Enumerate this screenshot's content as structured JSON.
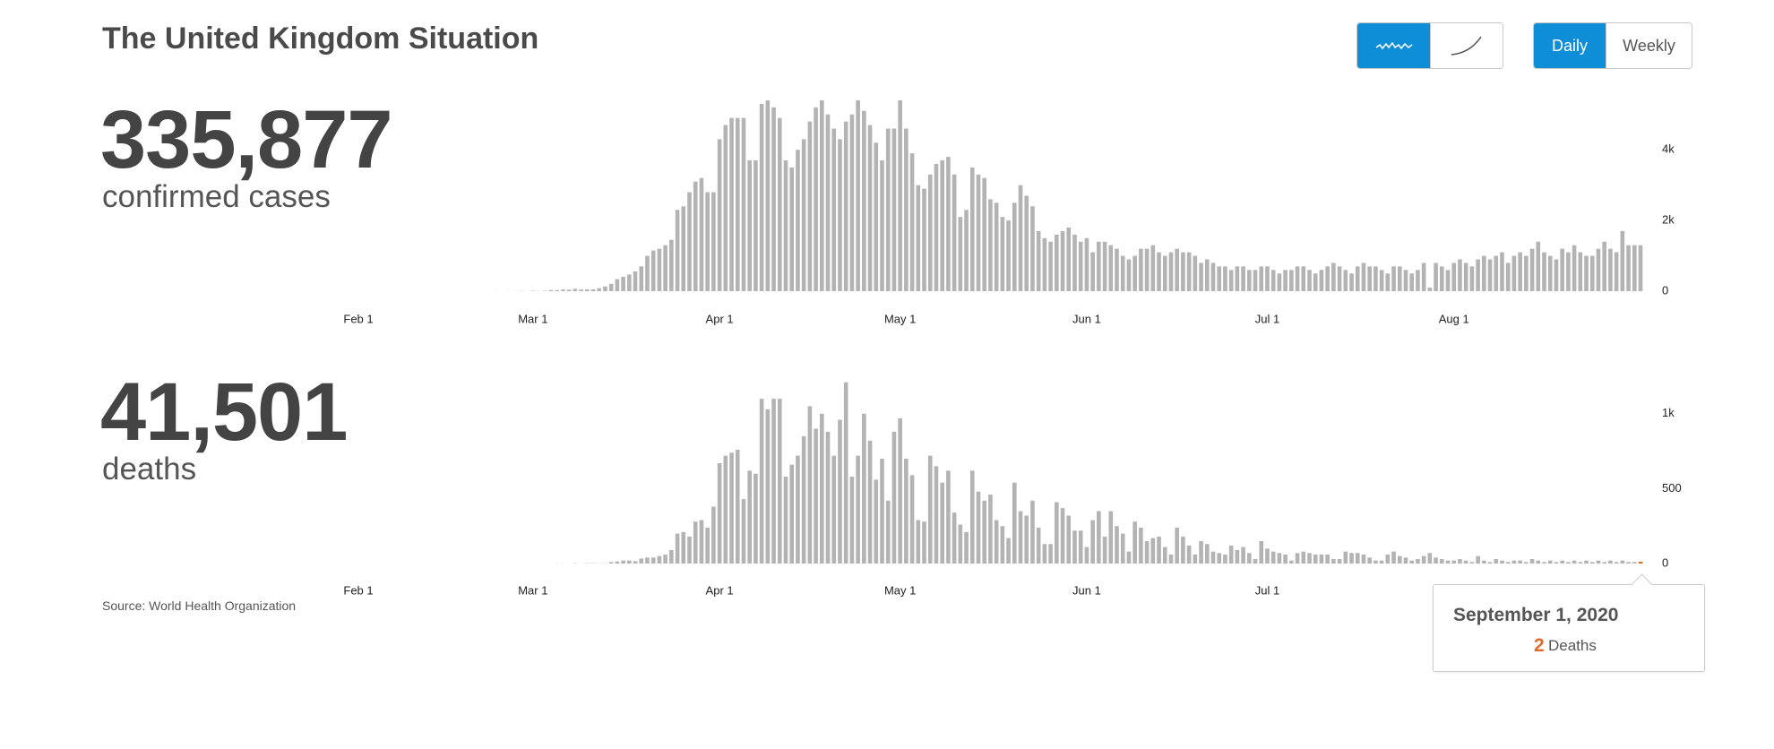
{
  "header": {
    "title": "The United Kingdom Situation"
  },
  "controls": {
    "time_ranges": [
      "Daily",
      "Weekly"
    ]
  },
  "stats": [
    {
      "value": "335,877",
      "label": "confirmed cases"
    },
    {
      "value": "41,501",
      "label": "deaths"
    }
  ],
  "source": {
    "label": "Source:",
    "name": "World Health Organization"
  },
  "tooltip": {
    "date": "September 1, 2020",
    "label": "Deaths",
    "color": "#e0692c"
  },
  "chart_data": [
    {
      "type": "bar",
      "color": "#b3b3b3",
      "ylim": [
        0,
        5500
      ],
      "yticks": [
        0,
        {
          "value": 2000,
          "label": "2k"
        },
        {
          "value": 4000,
          "label": "4k"
        }
      ],
      "grid": false,
      "categories": [
        "Feb 1",
        null,
        null,
        null,
        null,
        null,
        null,
        null,
        null,
        null,
        null,
        null,
        null,
        null,
        null,
        null,
        null,
        null,
        null,
        null,
        null,
        null,
        null,
        null,
        null,
        null,
        null,
        null,
        null,
        "Mar 1",
        null,
        null,
        null,
        null,
        null,
        null,
        null,
        null,
        null,
        null,
        null,
        null,
        null,
        null,
        null,
        null,
        null,
        null,
        null,
        null,
        null,
        null,
        null,
        null,
        null,
        null,
        null,
        null,
        null,
        null,
        "Apr 1",
        null,
        null,
        null,
        null,
        null,
        null,
        null,
        null,
        null,
        null,
        null,
        null,
        null,
        null,
        null,
        null,
        null,
        null,
        null,
        null,
        null,
        null,
        null,
        null,
        null,
        null,
        null,
        null,
        null,
        "May 1",
        null,
        null,
        null,
        null,
        null,
        null,
        null,
        null,
        null,
        null,
        null,
        null,
        null,
        null,
        null,
        null,
        null,
        null,
        null,
        null,
        null,
        null,
        null,
        null,
        null,
        null,
        null,
        null,
        null,
        null,
        "Jun 1",
        null,
        null,
        null,
        null,
        null,
        null,
        null,
        null,
        null,
        null,
        null,
        null,
        null,
        null,
        null,
        null,
        null,
        null,
        null,
        null,
        null,
        null,
        null,
        null,
        null,
        null,
        null,
        null,
        null,
        "Jul 1",
        null,
        null,
        null,
        null,
        null,
        null,
        null,
        null,
        null,
        null,
        null,
        null,
        null,
        null,
        null,
        null,
        null,
        null,
        null,
        null,
        null,
        null,
        null,
        null,
        null,
        null,
        null,
        null,
        null,
        null,
        "Aug 1",
        null,
        null,
        null,
        null,
        null,
        null,
        null,
        null,
        null,
        null,
        null,
        null,
        null,
        null,
        null,
        null,
        null,
        null,
        null,
        null,
        null,
        null,
        null,
        null,
        null,
        null,
        null,
        null,
        null,
        null,
        null
      ],
      "values": [
        0,
        0,
        0,
        0,
        0,
        0,
        0,
        0,
        1,
        0,
        0,
        0,
        0,
        0,
        0,
        0,
        0,
        0,
        0,
        0,
        0,
        0,
        0,
        4,
        0,
        4,
        2,
        7,
        3,
        12,
        4,
        11,
        34,
        30,
        48,
        43,
        67,
        46,
        50,
        52,
        83,
        134,
        208,
        342,
        407,
        470,
        560,
        700,
        1000,
        1150,
        1200,
        1300,
        1450,
        2300,
        2400,
        2800,
        3100,
        3200,
        2800,
        2800,
        4300,
        4700,
        4900,
        4900,
        4900,
        3700,
        3700,
        5300,
        5400,
        5200,
        4900,
        3700,
        3500,
        4000,
        4300,
        4800,
        5200,
        5400,
        5000,
        4600,
        4300,
        4800,
        5000,
        5400,
        5100,
        4700,
        4200,
        3700,
        4600,
        4600,
        5400,
        4600,
        3900,
        3000,
        2900,
        3300,
        3600,
        3700,
        3800,
        3300,
        2100,
        2300,
        3500,
        3300,
        3200,
        2600,
        2500,
        2100,
        2000,
        2500,
        3000,
        2700,
        2400,
        1700,
        1500,
        1400,
        1600,
        1700,
        1800,
        1600,
        1400,
        1500,
        1100,
        1400,
        1400,
        1300,
        1200,
        1000,
        900,
        1000,
        1200,
        1200,
        1300,
        1100,
        1000,
        1100,
        1200,
        1100,
        1100,
        1000,
        800,
        900,
        800,
        700,
        700,
        600,
        700,
        700,
        600,
        600,
        700,
        700,
        600,
        500,
        600,
        600,
        700,
        700,
        600,
        500,
        600,
        700,
        800,
        700,
        600,
        500,
        700,
        800,
        700,
        700,
        600,
        500,
        700,
        700,
        600,
        500,
        600,
        800,
        100,
        800,
        700,
        600,
        800,
        900,
        800,
        700,
        900,
        1000,
        900,
        1000,
        1100,
        800,
        1000,
        1100,
        1000,
        1200,
        1400,
        1100,
        1000,
        900,
        1200,
        1100,
        1300,
        1100,
        1000,
        1000,
        1200,
        1400,
        1200,
        1100,
        1700,
        1300,
        1300,
        1300
      ]
    },
    {
      "type": "bar",
      "color": "#b3b3b3",
      "ylim": [
        0,
        1250
      ],
      "yticks": [
        0,
        500,
        {
          "value": 1000,
          "label": "1k"
        }
      ],
      "grid": false,
      "categories": [
        "Feb 1",
        null,
        null,
        null,
        null,
        null,
        null,
        null,
        null,
        null,
        null,
        null,
        null,
        null,
        null,
        null,
        null,
        null,
        null,
        null,
        null,
        null,
        null,
        null,
        null,
        null,
        null,
        null,
        null,
        "Mar 1",
        null,
        null,
        null,
        null,
        null,
        null,
        null,
        null,
        null,
        null,
        null,
        null,
        null,
        null,
        null,
        null,
        null,
        null,
        null,
        null,
        null,
        null,
        null,
        null,
        null,
        null,
        null,
        null,
        null,
        null,
        "Apr 1",
        null,
        null,
        null,
        null,
        null,
        null,
        null,
        null,
        null,
        null,
        null,
        null,
        null,
        null,
        null,
        null,
        null,
        null,
        null,
        null,
        null,
        null,
        null,
        null,
        null,
        null,
        null,
        null,
        null,
        "May 1",
        null,
        null,
        null,
        null,
        null,
        null,
        null,
        null,
        null,
        null,
        null,
        null,
        null,
        null,
        null,
        null,
        null,
        null,
        null,
        null,
        null,
        null,
        null,
        null,
        null,
        null,
        null,
        null,
        null,
        null,
        "Jun 1",
        null,
        null,
        null,
        null,
        null,
        null,
        null,
        null,
        null,
        null,
        null,
        null,
        null,
        null,
        null,
        null,
        null,
        null,
        null,
        null,
        null,
        null,
        null,
        null,
        null,
        null,
        null,
        null,
        null,
        "Jul 1",
        null,
        null,
        null,
        null,
        null,
        null,
        null,
        null,
        null,
        null,
        null,
        null,
        null,
        null,
        null,
        null,
        null,
        null,
        null,
        null,
        null,
        null,
        null,
        null,
        null,
        null,
        null,
        null,
        null,
        null,
        "Aug 1",
        null,
        null,
        null,
        null,
        null,
        null,
        null,
        null,
        null,
        null,
        null,
        null,
        null,
        null,
        null,
        null,
        null,
        null,
        null,
        null,
        null,
        null,
        null,
        null,
        null,
        null,
        null,
        null,
        null,
        null,
        null
      ],
      "values": [
        0,
        0,
        0,
        0,
        0,
        0,
        0,
        0,
        0,
        0,
        0,
        0,
        0,
        0,
        0,
        0,
        0,
        0,
        0,
        0,
        0,
        0,
        0,
        0,
        0,
        0,
        0,
        0,
        0,
        0,
        0,
        0,
        0,
        1,
        1,
        0,
        2,
        0,
        2,
        2,
        1,
        2,
        10,
        14,
        20,
        20,
        16,
        33,
        40,
        40,
        50,
        60,
        90,
        200,
        210,
        180,
        280,
        290,
        240,
        380,
        670,
        720,
        740,
        760,
        430,
        620,
        600,
        1100,
        1030,
        1100,
        1100,
        580,
        660,
        720,
        850,
        1050,
        900,
        1000,
        880,
        720,
        960,
        1210,
        580,
        720,
        1000,
        820,
        560,
        700,
        420,
        880,
        970,
        700,
        590,
        290,
        280,
        720,
        650,
        540,
        620,
        340,
        260,
        210,
        620,
        480,
        420,
        460,
        290,
        250,
        170,
        540,
        350,
        320,
        420,
        240,
        130,
        130,
        410,
        370,
        320,
        220,
        220,
        110,
        290,
        350,
        180,
        350,
        250,
        200,
        80,
        280,
        240,
        150,
        170,
        180,
        110,
        60,
        240,
        180,
        120,
        60,
        150,
        130,
        80,
        70,
        60,
        120,
        90,
        110,
        70,
        30,
        150,
        100,
        80,
        70,
        60,
        20,
        70,
        80,
        70,
        60,
        60,
        60,
        30,
        30,
        80,
        70,
        70,
        60,
        40,
        20,
        20,
        60,
        80,
        50,
        40,
        20,
        30,
        50,
        70,
        40,
        30,
        20,
        20,
        30,
        20,
        10,
        50,
        20,
        10,
        30,
        20,
        10,
        20,
        20,
        10,
        30,
        20,
        10,
        20,
        10,
        20,
        10,
        20,
        10,
        20,
        10,
        20,
        10,
        20,
        10,
        20,
        10,
        10,
        2
      ]
    }
  ]
}
